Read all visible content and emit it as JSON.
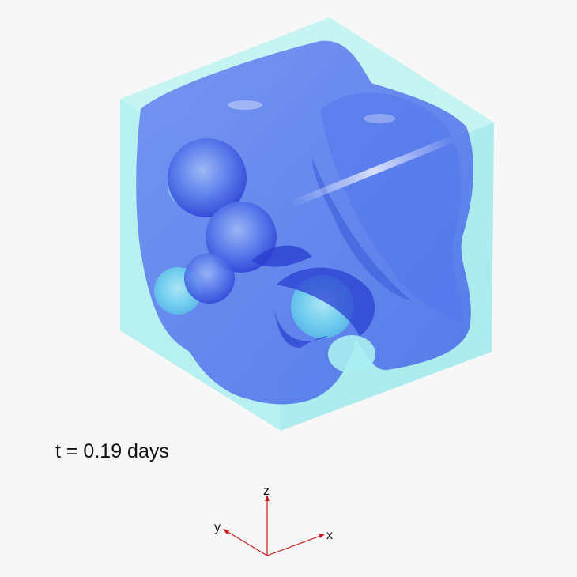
{
  "time_label": "t = 0.19 days",
  "axes": {
    "x": "x",
    "y": "y",
    "z": "z"
  },
  "colors": {
    "background": "#f7f7f7",
    "outer_box": "#aeeeee",
    "isosurface": "#4f73f0",
    "isosurface_dark": "#2233cc",
    "cavity": "#7ee0f2",
    "axis": "#c81a1a"
  }
}
